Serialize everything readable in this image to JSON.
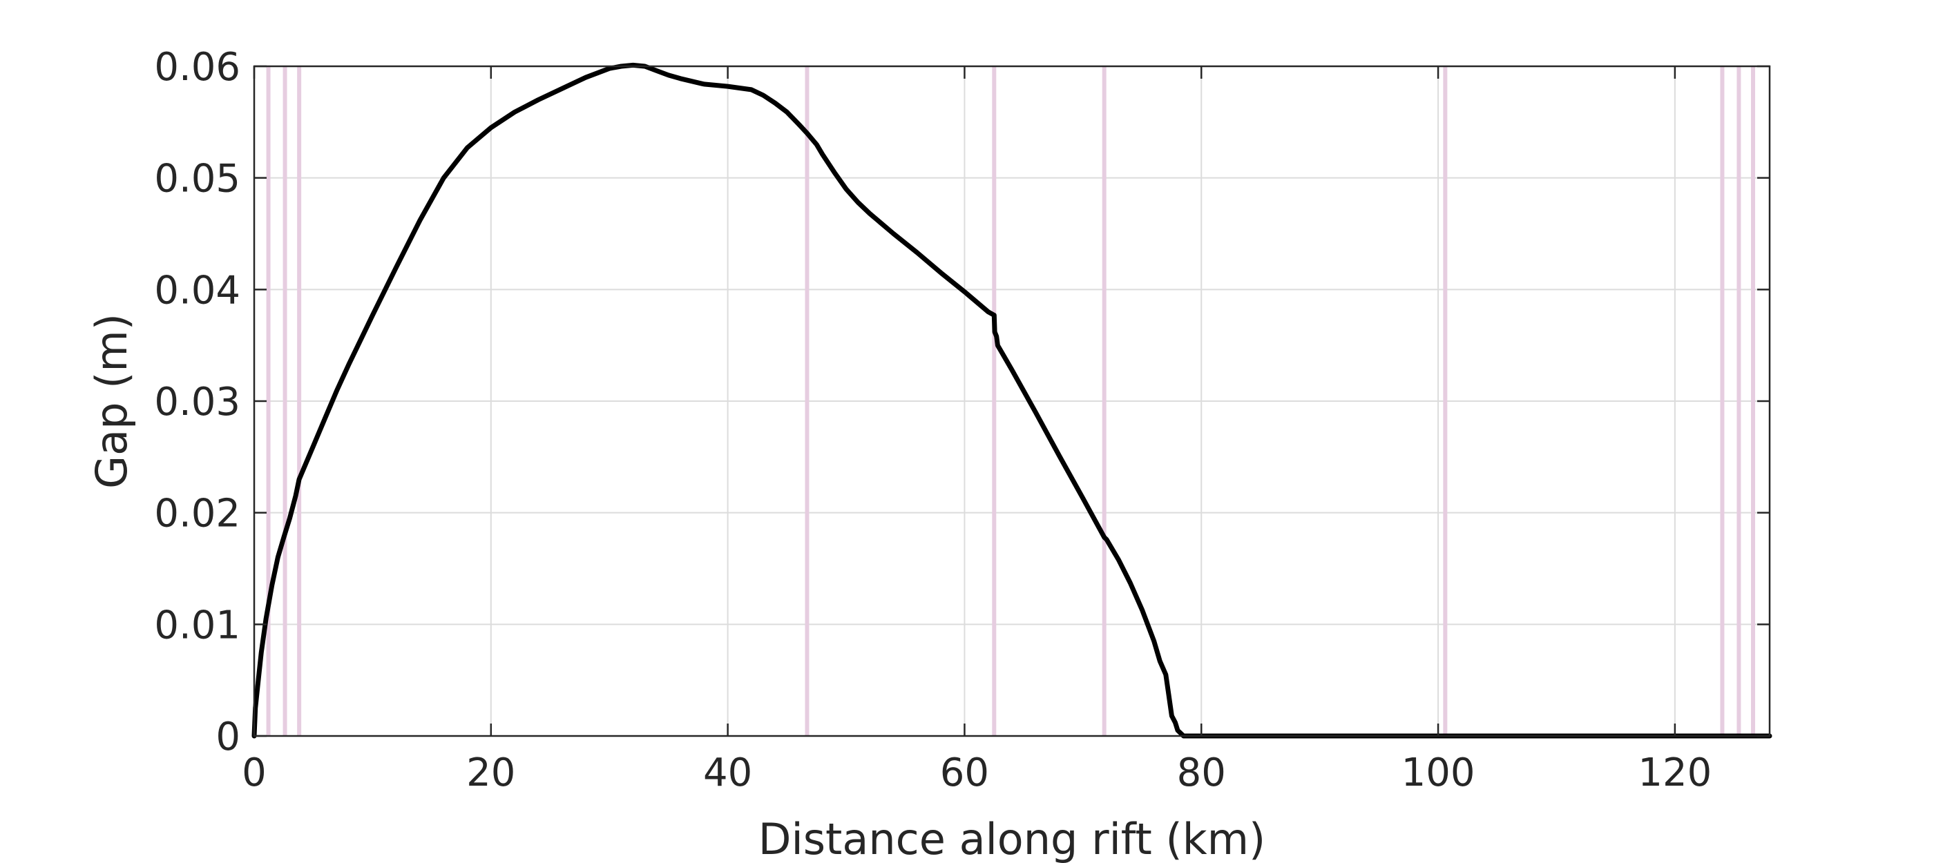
{
  "chart_data": {
    "type": "line",
    "xlabel": "Distance along rift (km)",
    "ylabel": "Gap (m)",
    "xlim": [
      0,
      128
    ],
    "ylim": [
      0,
      0.06
    ],
    "x_ticks": [
      0,
      20,
      40,
      60,
      80,
      100,
      120
    ],
    "x_tick_labels": [
      "0",
      "20",
      "40",
      "60",
      "80",
      "100",
      "120"
    ],
    "y_ticks": [
      0,
      0.01,
      0.02,
      0.03,
      0.04,
      0.05,
      0.06
    ],
    "y_tick_labels": [
      "0",
      "0.01",
      "0.02",
      "0.03",
      "0.04",
      "0.05",
      "0.06"
    ],
    "grid": true,
    "vertical_markers_x": [
      1.2,
      2.6,
      3.8,
      46.7,
      62.5,
      71.8,
      100.6,
      124.0,
      125.4,
      126.6
    ],
    "colors": {
      "series": "#000000",
      "markers": "#e6cde0",
      "grid": "#dcdcdc",
      "axes": "#262626"
    },
    "series": [
      {
        "x": [
          0,
          0.1,
          0.3,
          0.6,
          1.0,
          1.5,
          2.0,
          2.5,
          3.0,
          3.5,
          3.8,
          4.2,
          5,
          6,
          7,
          8,
          10,
          12,
          14,
          16,
          18,
          20,
          22,
          24,
          26,
          28,
          30,
          31,
          32,
          33,
          34,
          35,
          36,
          38,
          40,
          42,
          43,
          44,
          45,
          46,
          46.7,
          47.5,
          48,
          49,
          50,
          51,
          52,
          54,
          56,
          58,
          60,
          62,
          62.5,
          62.55,
          62.7,
          62.8,
          64,
          66,
          68,
          70,
          71.8,
          72,
          73,
          74,
          75,
          76,
          76.5,
          77,
          77.2,
          77.5,
          77.8,
          78,
          78.5,
          80,
          90,
          100,
          110,
          120,
          128
        ],
        "y": [
          0.0,
          0.0025,
          0.0045,
          0.0075,
          0.0105,
          0.0135,
          0.016,
          0.0178,
          0.0195,
          0.0215,
          0.023,
          0.024,
          0.026,
          0.0285,
          0.031,
          0.0333,
          0.0377,
          0.042,
          0.0462,
          0.05,
          0.0527,
          0.0545,
          0.0559,
          0.057,
          0.058,
          0.059,
          0.0598,
          0.06,
          0.0601,
          0.06,
          0.0596,
          0.0592,
          0.0589,
          0.0584,
          0.0582,
          0.0579,
          0.0574,
          0.0567,
          0.0559,
          0.0548,
          0.054,
          0.053,
          0.0521,
          0.0505,
          0.049,
          0.0478,
          0.0468,
          0.045,
          0.0433,
          0.0415,
          0.0398,
          0.038,
          0.0377,
          0.0362,
          0.0358,
          0.035,
          0.0328,
          0.029,
          0.0251,
          0.0213,
          0.0178,
          0.0176,
          0.0158,
          0.0137,
          0.0113,
          0.0085,
          0.0067,
          0.0055,
          0.004,
          0.0018,
          0.0012,
          0.0005,
          0.0,
          0.0,
          0.0,
          0.0,
          0.0,
          0.0,
          0.0
        ]
      }
    ]
  }
}
